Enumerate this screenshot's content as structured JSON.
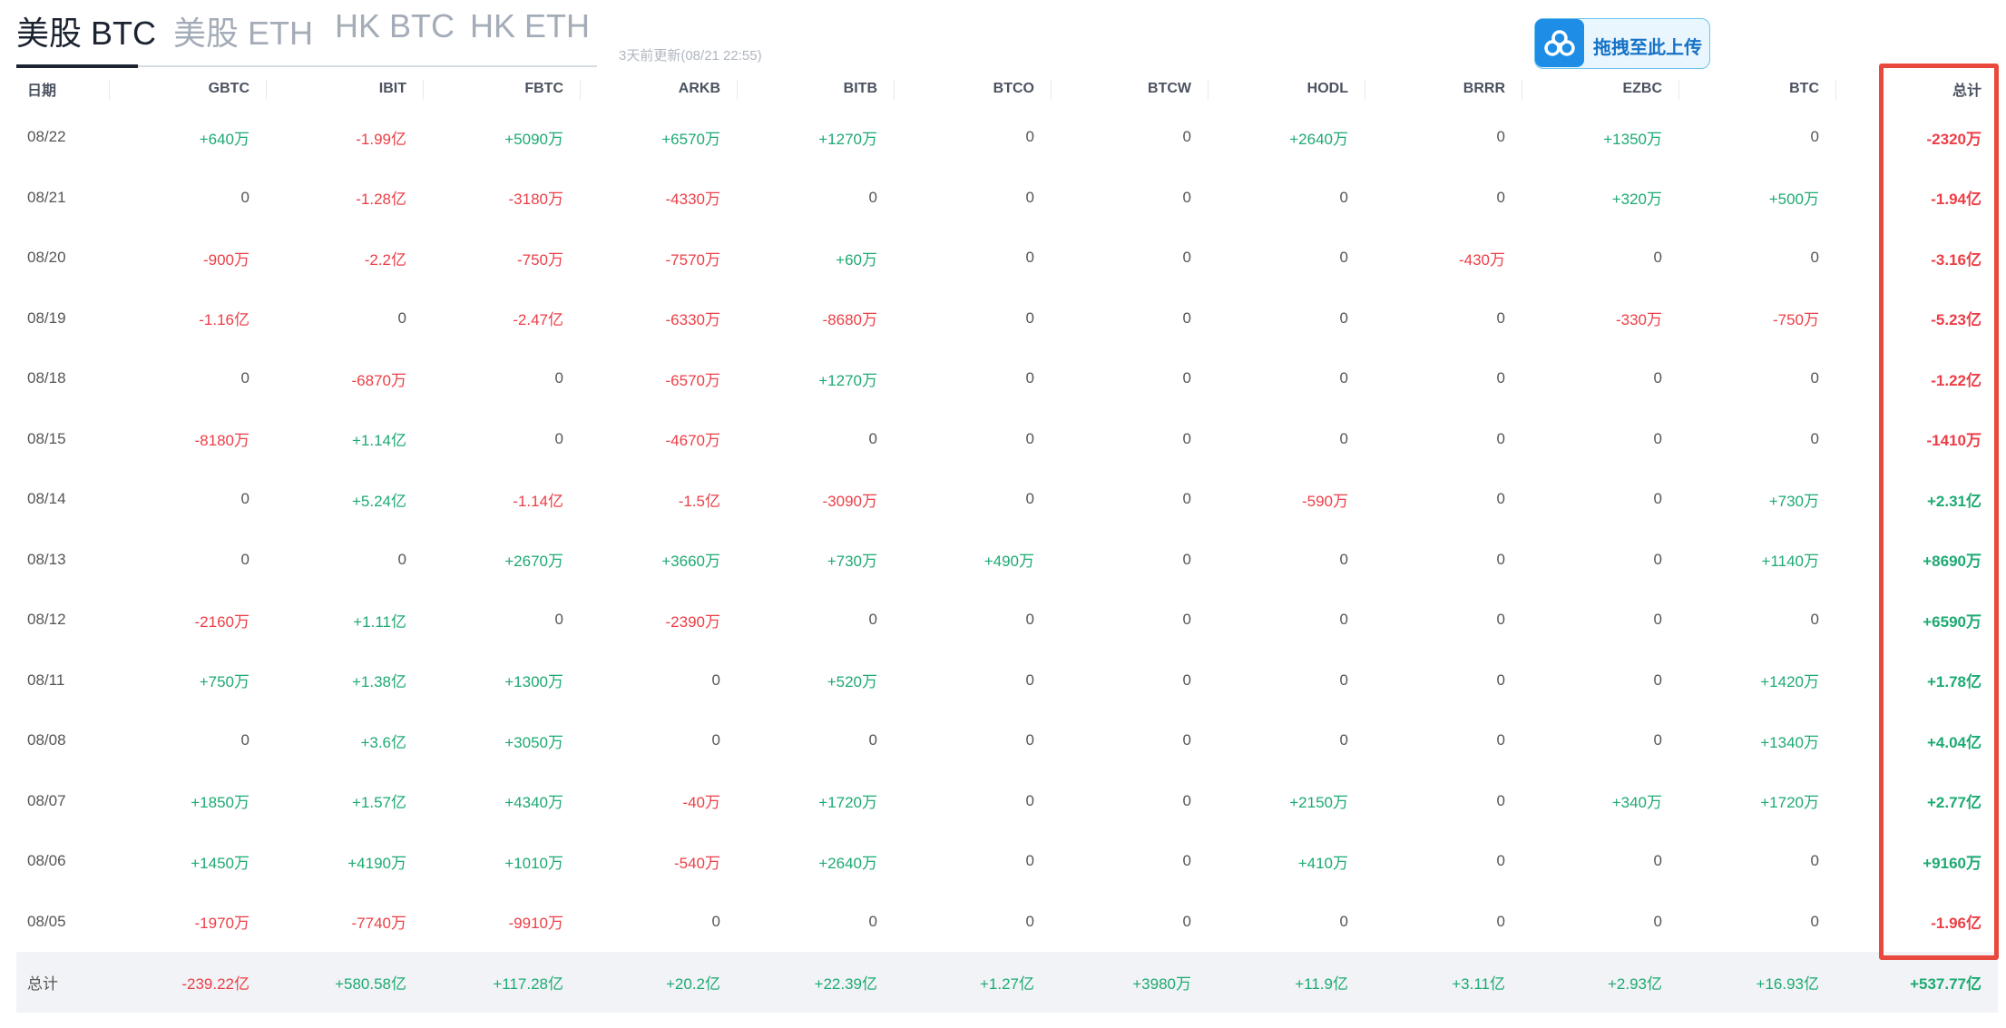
{
  "tabs": [
    {
      "label": "美股 BTC",
      "active": true
    },
    {
      "label": "美股 ETH",
      "active": false
    },
    {
      "label": "HK BTC",
      "active": false
    },
    {
      "label": "HK ETH",
      "active": false
    }
  ],
  "updated_text": "3天前更新(08/21 22:55)",
  "upload_button": {
    "label": "拖拽至此上传",
    "icon": "cloud-upload-icon"
  },
  "colors": {
    "positive": "#1daa72",
    "negative": "#ec3e46",
    "highlight": "#e8493c",
    "accent": "#1d8de6"
  },
  "table": {
    "headers": [
      "日期",
      "GBTC",
      "IBIT",
      "FBTC",
      "ARKB",
      "BITB",
      "BTCO",
      "BTCW",
      "HODL",
      "BRRR",
      "EZBC",
      "BTC",
      "总计"
    ],
    "rows": [
      [
        "08/22",
        "+640万",
        "-1.99亿",
        "+5090万",
        "+6570万",
        "+1270万",
        "0",
        "0",
        "+2640万",
        "0",
        "+1350万",
        "0",
        "-2320万"
      ],
      [
        "08/21",
        "0",
        "-1.28亿",
        "-3180万",
        "-4330万",
        "0",
        "0",
        "0",
        "0",
        "0",
        "+320万",
        "+500万",
        "-1.94亿"
      ],
      [
        "08/20",
        "-900万",
        "-2.2亿",
        "-750万",
        "-7570万",
        "+60万",
        "0",
        "0",
        "0",
        "-430万",
        "0",
        "0",
        "-3.16亿"
      ],
      [
        "08/19",
        "-1.16亿",
        "0",
        "-2.47亿",
        "-6330万",
        "-8680万",
        "0",
        "0",
        "0",
        "0",
        "-330万",
        "-750万",
        "-5.23亿"
      ],
      [
        "08/18",
        "0",
        "-6870万",
        "0",
        "-6570万",
        "+1270万",
        "0",
        "0",
        "0",
        "0",
        "0",
        "0",
        "-1.22亿"
      ],
      [
        "08/15",
        "-8180万",
        "+1.14亿",
        "0",
        "-4670万",
        "0",
        "0",
        "0",
        "0",
        "0",
        "0",
        "0",
        "-1410万"
      ],
      [
        "08/14",
        "0",
        "+5.24亿",
        "-1.14亿",
        "-1.5亿",
        "-3090万",
        "0",
        "0",
        "-590万",
        "0",
        "0",
        "+730万",
        "+2.31亿"
      ],
      [
        "08/13",
        "0",
        "0",
        "+2670万",
        "+3660万",
        "+730万",
        "+490万",
        "0",
        "0",
        "0",
        "0",
        "+1140万",
        "+8690万"
      ],
      [
        "08/12",
        "-2160万",
        "+1.11亿",
        "0",
        "-2390万",
        "0",
        "0",
        "0",
        "0",
        "0",
        "0",
        "0",
        "+6590万"
      ],
      [
        "08/11",
        "+750万",
        "+1.38亿",
        "+1300万",
        "0",
        "+520万",
        "0",
        "0",
        "0",
        "0",
        "0",
        "+1420万",
        "+1.78亿"
      ],
      [
        "08/08",
        "0",
        "+3.6亿",
        "+3050万",
        "0",
        "0",
        "0",
        "0",
        "0",
        "0",
        "0",
        "+1340万",
        "+4.04亿"
      ],
      [
        "08/07",
        "+1850万",
        "+1.57亿",
        "+4340万",
        "-40万",
        "+1720万",
        "0",
        "0",
        "+2150万",
        "0",
        "+340万",
        "+1720万",
        "+2.77亿"
      ],
      [
        "08/06",
        "+1450万",
        "+4190万",
        "+1010万",
        "-540万",
        "+2640万",
        "0",
        "0",
        "+410万",
        "0",
        "0",
        "0",
        "+9160万"
      ],
      [
        "08/05",
        "-1970万",
        "-7740万",
        "-9910万",
        "0",
        "0",
        "0",
        "0",
        "0",
        "0",
        "0",
        "0",
        "-1.96亿"
      ]
    ],
    "totals": [
      "总计",
      "-239.22亿",
      "+580.58亿",
      "+117.28亿",
      "+20.2亿",
      "+22.39亿",
      "+1.27亿",
      "+3980万",
      "+11.9亿",
      "+3.11亿",
      "+2.93亿",
      "+16.93亿",
      "+537.77亿"
    ]
  }
}
